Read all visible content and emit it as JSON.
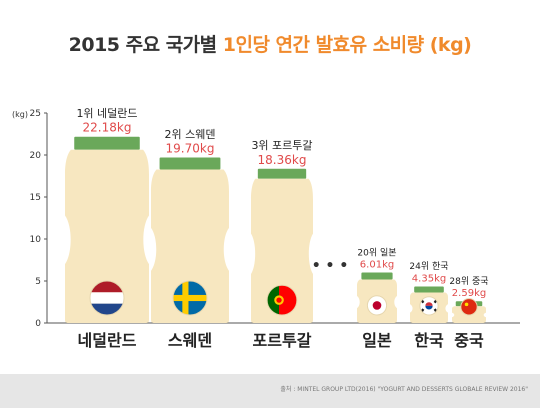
{
  "title": {
    "prefix": "2015 주요 국가별 ",
    "accent": "1인당 연간 발효유 소비량 (kg)"
  },
  "source": "출처 : MINTEL GROUP LTD(2016) \"YOGURT AND DESSERTS GLOBALE REVIEW 2016\"",
  "colors": {
    "bottle": "#f7e7c0",
    "cap": "#6aa85a",
    "value": "#e04a4a",
    "accent": "#f08a2c",
    "dots": "#333333"
  },
  "chart_data": {
    "type": "bar",
    "ylabel": "(kg)",
    "ylim": [
      0,
      25
    ],
    "yticks": [
      0,
      5,
      10,
      15,
      20,
      25
    ],
    "grid": false,
    "legend": "none",
    "categories": [
      "네덜란드",
      "스웨덴",
      "포르투갈",
      "일본",
      "한국",
      "중국"
    ],
    "rank_labels": [
      "1위 네덜란드",
      "2위 스웨덴",
      "3위 포르투갈",
      "20위 일본",
      "24위 한국",
      "28위 중국"
    ],
    "value_labels": [
      "22.18kg",
      "19.70kg",
      "18.36kg",
      "6.01kg",
      "4.35kg",
      "2.59kg"
    ],
    "values": [
      22.18,
      19.7,
      18.36,
      6.01,
      4.35,
      2.59
    ],
    "flags": [
      "netherlands-flag",
      "sweden-flag",
      "portugal-flag",
      "japan-flag",
      "korea-flag",
      "china-flag"
    ],
    "gap_marker": "• • •"
  }
}
